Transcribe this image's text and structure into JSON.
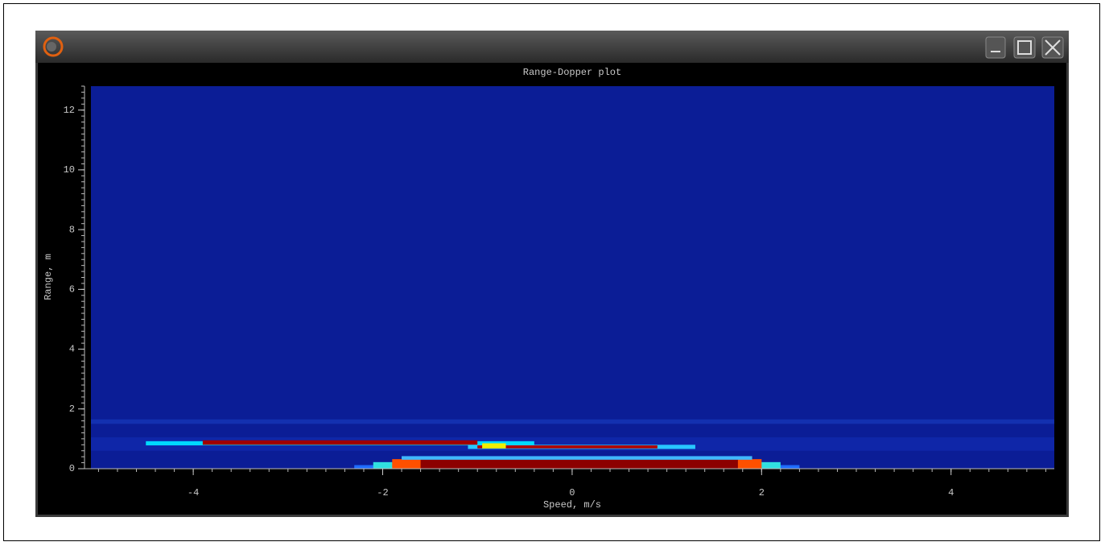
{
  "chart_data": {
    "type": "heatmap",
    "title": "Range-Dopper plot",
    "x_label": "Speed, m/s",
    "y_label": "Range, m",
    "xlim": [
      -5.08,
      5.09
    ],
    "xticks": [
      -4,
      -2,
      0,
      2,
      4
    ],
    "ylim": [
      0,
      12.8
    ],
    "yticks": [
      0,
      2,
      4,
      6,
      8,
      10,
      12
    ],
    "minor_divisions": 10,
    "background": "#0b1d96",
    "regions": [
      {
        "x": [
          -5.08,
          5.09
        ],
        "y": [
          1.5,
          1.65
        ],
        "color": "#1330b0"
      },
      {
        "x": [
          -5.08,
          5.09
        ],
        "y": [
          0.6,
          1.05
        ],
        "color": "#0f26a8"
      },
      {
        "x": [
          -4.5,
          -0.4
        ],
        "y": [
          0.78,
          0.92
        ],
        "color": "#00d8ff"
      },
      {
        "x": [
          -3.9,
          -1.0
        ],
        "y": [
          0.8,
          0.95
        ],
        "color": "#a00000"
      },
      {
        "x": [
          -1.1,
          1.3
        ],
        "y": [
          0.66,
          0.8
        ],
        "color": "#28c8ff"
      },
      {
        "x": [
          -1.0,
          0.9
        ],
        "y": [
          0.68,
          0.78
        ],
        "color": "#b00000"
      },
      {
        "x": [
          -0.95,
          -0.7
        ],
        "y": [
          0.68,
          0.85
        ],
        "color": "#f0f000"
      },
      {
        "x": [
          -2.3,
          2.4
        ],
        "y": [
          0,
          0.12
        ],
        "color": "#1e6cff"
      },
      {
        "x": [
          -2.1,
          2.2
        ],
        "y": [
          0,
          0.22
        ],
        "color": "#30e0e0"
      },
      {
        "x": [
          -1.9,
          2.0
        ],
        "y": [
          0,
          0.32
        ],
        "color": "#ff5000"
      },
      {
        "x": [
          -1.6,
          1.75
        ],
        "y": [
          0,
          0.38
        ],
        "color": "#8c0000"
      },
      {
        "x": [
          -1.8,
          1.9
        ],
        "y": [
          0.3,
          0.42
        ],
        "color": "#40b8ff"
      }
    ]
  }
}
